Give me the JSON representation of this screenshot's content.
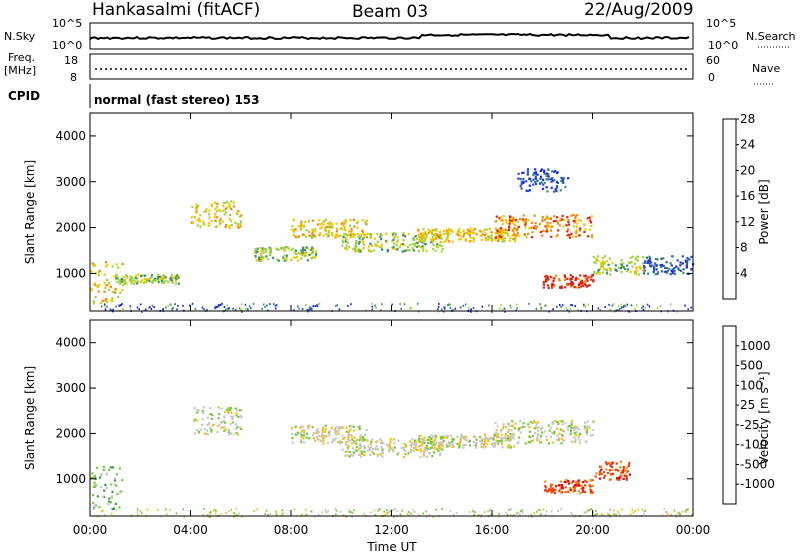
{
  "header": {
    "station": "Hankasalmi (fitACF)",
    "beam": "Beam 03",
    "date": "22/Aug/2009"
  },
  "top_panels": {
    "nsky_label": "N.Sky",
    "nsky_ticks": [
      "10^5",
      "10^0"
    ],
    "nsearch_label": "N.Search",
    "nsearch_ticks": [
      "10^5",
      "10^0"
    ],
    "freq_label_1": "Freq.",
    "freq_label_2": "[MHz]",
    "freq_ticks": [
      "18",
      "8"
    ],
    "nave_label": "Nave",
    "nave_ticks": [
      "60",
      "0"
    ],
    "cpid_label": "CPID",
    "cpid_text": "normal (fast stereo) 153"
  },
  "chart_data": [
    {
      "type": "heatmap",
      "name": "power",
      "ylabel": "Slant Range [km]",
      "xlabel": "",
      "y_ticks": [
        "1000",
        "2000",
        "3000",
        "4000"
      ],
      "ylim": [
        180,
        4500
      ],
      "x_ticks": [
        "00:00",
        "04:00",
        "08:00",
        "12:00",
        "16:00",
        "20:00",
        "00:00"
      ],
      "xlim_hours": [
        0,
        24
      ],
      "colorbar": {
        "label": "Power [dB]",
        "ticks": [
          "4",
          "8",
          "12",
          "16",
          "20",
          "24",
          "28"
        ],
        "colors": [
          "#1e22f0",
          "#2a56b8",
          "#3f8c6c",
          "#9ed242",
          "#f0c800",
          "#f08a10",
          "#e02010"
        ]
      },
      "bands": [
        {
          "t0": 0.0,
          "t1": 1.3,
          "r0": 350,
          "r1": 1300,
          "level": 4
        },
        {
          "t0": 1.0,
          "t1": 3.5,
          "r0": 800,
          "r1": 1000,
          "level": 3
        },
        {
          "t0": 4.0,
          "t1": 6.0,
          "r0": 2000,
          "r1": 2600,
          "level": 4
        },
        {
          "t0": 6.5,
          "t1": 9.0,
          "r0": 1300,
          "r1": 1600,
          "level": 3
        },
        {
          "t0": 8.0,
          "t1": 11.0,
          "r0": 1800,
          "r1": 2200,
          "level": 4
        },
        {
          "t0": 10.0,
          "t1": 14.0,
          "r0": 1500,
          "r1": 1900,
          "level": 3
        },
        {
          "t0": 13.0,
          "t1": 17.0,
          "r0": 1700,
          "r1": 2000,
          "level": 4
        },
        {
          "t0": 16.0,
          "t1": 20.0,
          "r0": 1800,
          "r1": 2300,
          "level": 5
        },
        {
          "t0": 18.0,
          "t1": 20.0,
          "r0": 700,
          "r1": 1000,
          "level": 6
        },
        {
          "t0": 20.0,
          "t1": 22.0,
          "r0": 1000,
          "r1": 1400,
          "level": 3
        },
        {
          "t0": 17.0,
          "t1": 19.0,
          "r0": 2800,
          "r1": 3300,
          "level": 1
        },
        {
          "t0": 22.0,
          "t1": 24.0,
          "r0": 1000,
          "r1": 1400,
          "level": 1
        }
      ]
    },
    {
      "type": "heatmap",
      "name": "velocity",
      "ylabel": "Slant Range [km]",
      "xlabel": "Time UT",
      "y_ticks": [
        "1000",
        "2000",
        "3000",
        "4000"
      ],
      "ylim": [
        180,
        4500
      ],
      "x_ticks": [
        "00:00",
        "04:00",
        "08:00",
        "12:00",
        "16:00",
        "20:00",
        "00:00"
      ],
      "xlim_hours": [
        0,
        24
      ],
      "colorbar": {
        "label": "Velocity [m s⁻¹]",
        "ticks": [
          "1000",
          "500",
          "100",
          "25",
          "-25",
          "-100",
          "-500",
          "-1000"
        ],
        "colors": [
          "#2040c8",
          "#2e6eb4",
          "#3a9a4a",
          "#72cc3a",
          "#c8c8c8",
          "#f0c020",
          "#f08a10",
          "#f04010",
          "#e00000"
        ]
      },
      "bands": [
        {
          "t0": 0.0,
          "t1": 1.3,
          "r0": 350,
          "r1": 1300,
          "level": 3
        },
        {
          "t0": 4.0,
          "t1": 6.0,
          "r0": 2000,
          "r1": 2600,
          "level": 4
        },
        {
          "t0": 8.0,
          "t1": 11.0,
          "r0": 1800,
          "r1": 2200,
          "level": 4
        },
        {
          "t0": 13.0,
          "t1": 17.0,
          "r0": 1700,
          "r1": 2000,
          "level": 4
        },
        {
          "t0": 16.0,
          "t1": 20.0,
          "r0": 1800,
          "r1": 2300,
          "level": 4
        },
        {
          "t0": 18.0,
          "t1": 20.0,
          "r0": 700,
          "r1": 1000,
          "level": 7
        },
        {
          "t0": 20.0,
          "t1": 21.5,
          "r0": 1000,
          "r1": 1400,
          "level": 7
        },
        {
          "t0": 10.0,
          "t1": 14.0,
          "r0": 1500,
          "r1": 1900,
          "level": 4
        }
      ]
    }
  ]
}
